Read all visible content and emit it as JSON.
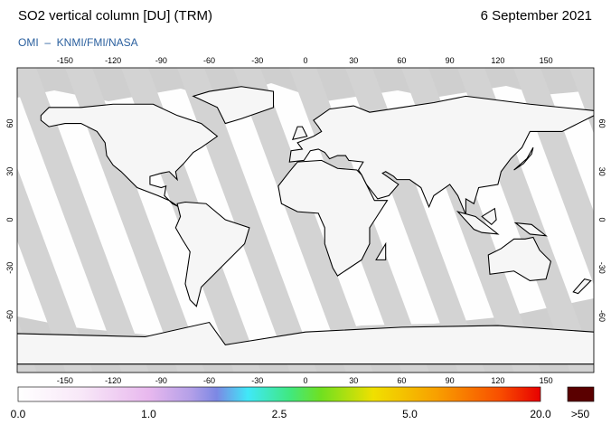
{
  "header": {
    "title": "SO2 vertical column [DU] (TRM)",
    "date": "6 September 2021",
    "credit": "OMI  –  KNMI/FMI/NASA"
  },
  "map": {
    "lon_ticks": [
      -150,
      -120,
      -90,
      -60,
      -30,
      0,
      30,
      60,
      90,
      120,
      150
    ],
    "lat_ticks": [
      60,
      30,
      0,
      -30,
      -60
    ]
  },
  "colorbar": {
    "labels": [
      "0.0",
      "1.0",
      "2.5",
      "5.0",
      "20.0"
    ],
    "overflow_label": ">50"
  }
}
